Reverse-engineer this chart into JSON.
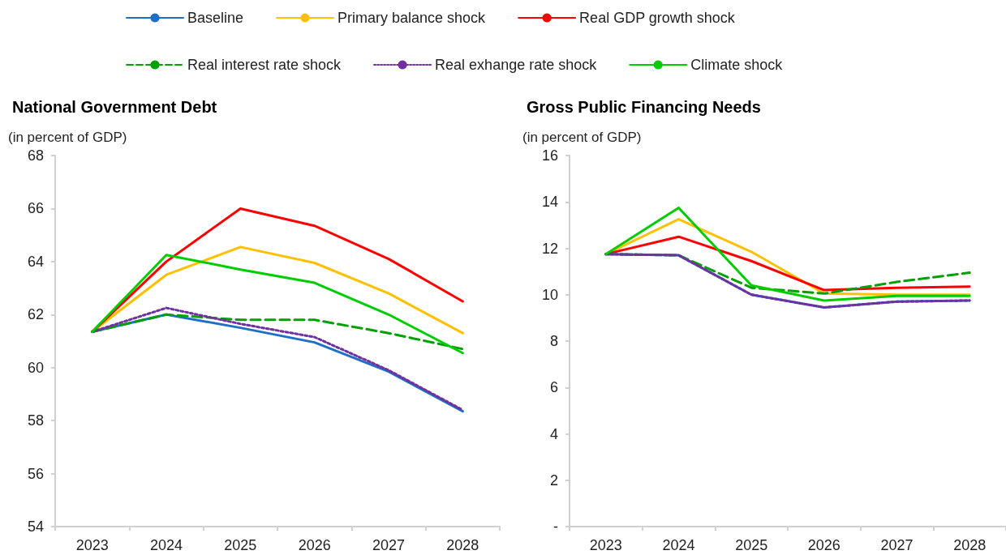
{
  "chart_data": [
    {
      "type": "line",
      "title": "National Government Debt",
      "ylabel": "(in percent of GDP)",
      "categories": [
        "2023",
        "2024",
        "2025",
        "2026",
        "2027",
        "2028"
      ],
      "ylim": [
        54,
        68
      ],
      "yticks": [
        54,
        56,
        58,
        60,
        62,
        64,
        66,
        68
      ],
      "grid": false,
      "legend": "top",
      "marker": "none",
      "series": [
        {
          "name": "Baseline",
          "color": "#1f6fc5",
          "values": [
            61.35,
            62.0,
            61.5,
            60.95,
            59.85,
            58.35
          ]
        },
        {
          "name": "Primary balance shock",
          "color": "#ffc000",
          "values": [
            61.35,
            63.5,
            64.55,
            63.95,
            62.8,
            61.3
          ]
        },
        {
          "name": "Real GDP growth shock",
          "color": "#ff0000",
          "values": [
            61.35,
            64.0,
            66.0,
            65.35,
            64.1,
            62.5
          ]
        },
        {
          "name": "Real interest rate shock",
          "color": "#00a000",
          "line_style": "dashed",
          "values": [
            61.35,
            62.0,
            61.8,
            61.8,
            61.3,
            60.7
          ]
        },
        {
          "name": "Real exhange rate shock",
          "color": "#7030a0",
          "line_style": "dotted",
          "values": [
            61.35,
            62.25,
            61.65,
            61.15,
            59.9,
            58.4
          ]
        },
        {
          "name": "Climate shock",
          "color": "#00cc00",
          "values": [
            61.35,
            64.25,
            63.7,
            63.2,
            62.0,
            60.55
          ]
        }
      ]
    },
    {
      "type": "line",
      "title": "Gross Public Financing Needs",
      "ylabel": "(in percent of GDP)",
      "categories": [
        "2023",
        "2024",
        "2025",
        "2026",
        "2027",
        "2028"
      ],
      "ylim": [
        0,
        16
      ],
      "yticks": [
        {
          "value": 0,
          "label": "-"
        },
        2,
        4,
        6,
        8,
        10,
        12,
        14,
        16
      ],
      "grid": false,
      "marker": "none",
      "series": [
        {
          "color": "#1f6fc5",
          "values": [
            11.75,
            11.7,
            10.0,
            9.45,
            9.7,
            9.75
          ]
        },
        {
          "color": "#ffc000",
          "values": [
            11.75,
            13.25,
            11.85,
            10.05,
            10.0,
            10.0
          ]
        },
        {
          "color": "#ff0000",
          "values": [
            11.75,
            12.5,
            11.45,
            10.2,
            10.3,
            10.35
          ]
        },
        {
          "color": "#00a000",
          "line_style": "dashed",
          "values": [
            11.75,
            11.7,
            10.3,
            10.05,
            10.55,
            10.95
          ]
        },
        {
          "color": "#7030a0",
          "line_style": "dotted",
          "values": [
            11.75,
            11.7,
            10.0,
            9.45,
            9.7,
            9.75
          ]
        },
        {
          "color": "#00cc00",
          "values": [
            11.75,
            13.75,
            10.4,
            9.75,
            9.95,
            9.95
          ]
        }
      ]
    }
  ]
}
